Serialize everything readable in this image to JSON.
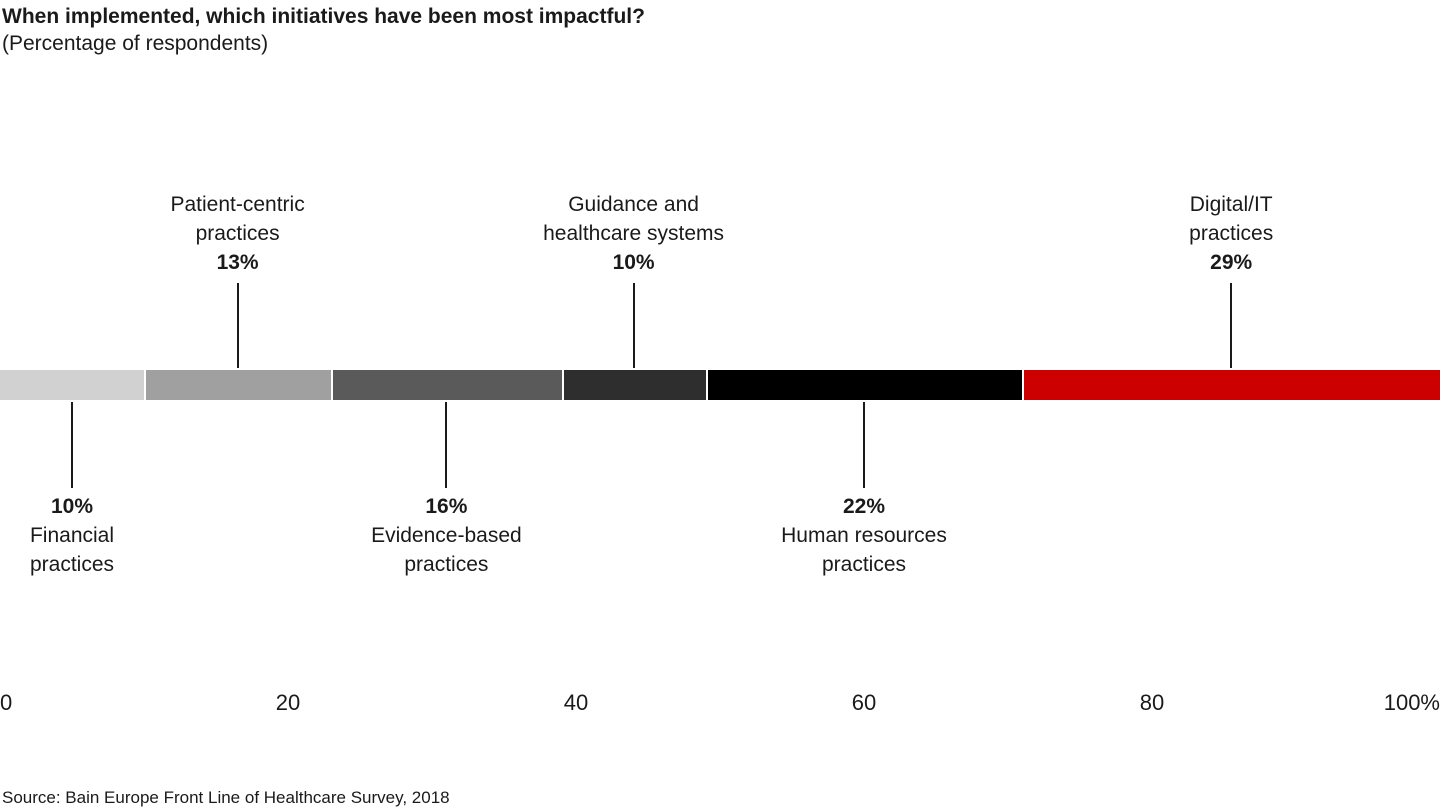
{
  "chart_data": {
    "type": "bar",
    "variant": "horizontal-stacked-100",
    "title": "When implemented, which initiatives have been most impactful?",
    "subtitle": "(Percentage of respondents)",
    "categories": [
      "Financial practices",
      "Patient-centric practices",
      "Evidence-based practices",
      "Guidance and healthcare systems",
      "Human resources practices",
      "Digital/IT practices"
    ],
    "values": [
      10,
      13,
      16,
      10,
      22,
      29
    ],
    "xlim": [
      0,
      100
    ],
    "grid": false,
    "legend": "none",
    "accent_color": "#cc0000",
    "segments": [
      {
        "id": "financial-practices",
        "label_lines": [
          "Financial",
          "practices"
        ],
        "pct": "10%",
        "value": 10,
        "color": "#d1d1d1",
        "label_position": "below"
      },
      {
        "id": "patient-centric-practices",
        "label_lines": [
          "Patient-centric",
          "practices"
        ],
        "pct": "13%",
        "value": 13,
        "color": "#a0a0a0",
        "label_position": "above"
      },
      {
        "id": "evidence-based-practices",
        "label_lines": [
          "Evidence-based",
          "practices"
        ],
        "pct": "16%",
        "value": 16,
        "color": "#5a5a5a",
        "label_position": "below"
      },
      {
        "id": "guidance-healthcare-systems",
        "label_lines": [
          "Guidance and",
          "healthcare systems"
        ],
        "pct": "10%",
        "value": 10,
        "color": "#2e2e2e",
        "label_position": "above"
      },
      {
        "id": "human-resources-practices",
        "label_lines": [
          "Human resources",
          "practices"
        ],
        "pct": "22%",
        "value": 22,
        "color": "#000000",
        "label_position": "below"
      },
      {
        "id": "digital-it-practices",
        "label_lines": [
          "Digital/IT",
          "practices"
        ],
        "pct": "29%",
        "value": 29,
        "color": "#cc0000",
        "label_position": "above"
      }
    ],
    "x_axis": {
      "ticks": [
        {
          "label": "0",
          "pos": 0
        },
        {
          "label": "20",
          "pos": 20
        },
        {
          "label": "40",
          "pos": 40
        },
        {
          "label": "60",
          "pos": 60
        },
        {
          "label": "80",
          "pos": 80
        },
        {
          "label": "100%",
          "pos": 100
        }
      ]
    },
    "source": "Source: Bain Europe Front Line of Healthcare Survey, 2018"
  }
}
